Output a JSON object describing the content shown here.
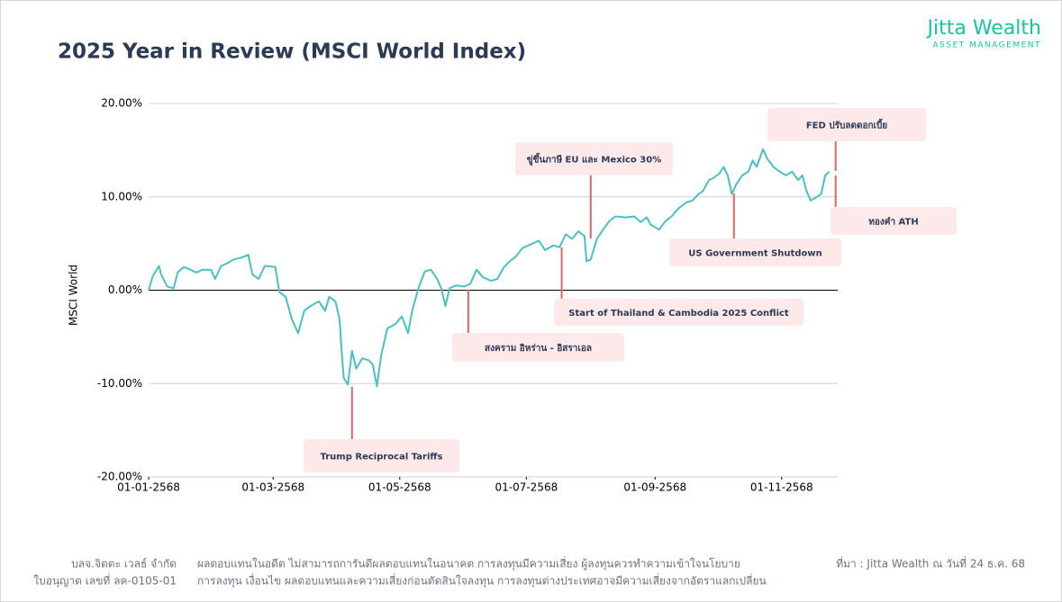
{
  "header": {
    "title": "2025 Year in Review (MSCI World Index)",
    "logo_main": "Jitta Wealth",
    "logo_sub": "ASSET MANAGEMENT"
  },
  "chart_data": {
    "type": "line",
    "ylabel": "MSCI World",
    "color": "#4bbfc3",
    "x": [
      "2568-01-01",
      "2568-01-03",
      "2568-01-06",
      "2568-01-07",
      "2568-01-10",
      "2568-01-13",
      "2568-01-15",
      "2568-01-18",
      "2568-01-21",
      "2568-01-24",
      "2568-01-27",
      "2568-01-31",
      "2568-02-02",
      "2568-02-05",
      "2568-02-08",
      "2568-02-11",
      "2568-02-15",
      "2568-02-18",
      "2568-02-20",
      "2568-02-23",
      "2568-02-26",
      "2568-03-02",
      "2568-03-04",
      "2568-03-07",
      "2568-03-10",
      "2568-03-13",
      "2568-03-16",
      "2568-03-19",
      "2568-03-23",
      "2568-03-26",
      "2568-03-28",
      "2568-03-31",
      "2568-04-02",
      "2568-04-03",
      "2568-04-04",
      "2568-04-06",
      "2568-04-08",
      "2568-04-10",
      "2568-04-13",
      "2568-04-16",
      "2568-04-18",
      "2568-04-20",
      "2568-04-22",
      "2568-04-25",
      "2568-04-29",
      "2568-05-02",
      "2568-05-05",
      "2568-05-07",
      "2568-05-10",
      "2568-05-13",
      "2568-05-16",
      "2568-05-19",
      "2568-05-21",
      "2568-05-23",
      "2568-05-25",
      "2568-05-28",
      "2568-06-01",
      "2568-06-04",
      "2568-06-07",
      "2568-06-10",
      "2568-06-14",
      "2568-06-17",
      "2568-06-20",
      "2568-06-23",
      "2568-06-26",
      "2568-06-29",
      "2568-07-04",
      "2568-07-07",
      "2568-07-10",
      "2568-07-14",
      "2568-07-17",
      "2568-07-20",
      "2568-07-23",
      "2568-07-26",
      "2568-07-29",
      "2568-07-30",
      "2568-08-01",
      "2568-08-04",
      "2568-08-07",
      "2568-08-10",
      "2568-08-13",
      "2568-08-18",
      "2568-08-22",
      "2568-08-25",
      "2568-08-28",
      "2568-08-30",
      "2568-09-03",
      "2568-09-06",
      "2568-09-09",
      "2568-09-12",
      "2568-09-16",
      "2568-09-19",
      "2568-09-22",
      "2568-09-24",
      "2568-09-27",
      "2568-09-29",
      "2568-10-02",
      "2568-10-04",
      "2568-10-06",
      "2568-10-08",
      "2568-10-10",
      "2568-10-13",
      "2568-10-16",
      "2568-10-18",
      "2568-10-20",
      "2568-10-23",
      "2568-10-25",
      "2568-10-28",
      "2568-10-31",
      "2568-11-03",
      "2568-11-06",
      "2568-11-09",
      "2568-11-11",
      "2568-11-13",
      "2568-11-15",
      "2568-11-18",
      "2568-11-20",
      "2568-11-22",
      "2568-11-24"
    ],
    "values": [
      0.0,
      1.5,
      2.6,
      1.7,
      0.4,
      0.2,
      1.9,
      2.5,
      2.2,
      1.9,
      2.2,
      2.2,
      1.2,
      2.6,
      2.9,
      3.3,
      3.5,
      3.8,
      1.7,
      1.2,
      2.6,
      2.5,
      -0.2,
      -0.7,
      -3.1,
      -4.6,
      -2.2,
      -1.7,
      -1.2,
      -2.2,
      -0.7,
      -1.2,
      -3.1,
      -6.5,
      -9.4,
      -10.1,
      -6.5,
      -8.4,
      -7.3,
      -7.5,
      -8.0,
      -10.3,
      -7.0,
      -4.1,
      -3.6,
      -2.8,
      -4.6,
      -2.2,
      0.2,
      2.0,
      2.2,
      1.2,
      0.2,
      -1.7,
      0.2,
      0.5,
      0.4,
      0.7,
      2.2,
      1.4,
      1.0,
      1.2,
      2.4,
      3.1,
      3.6,
      4.5,
      5.0,
      5.3,
      4.3,
      4.8,
      4.6,
      6.0,
      5.5,
      6.3,
      5.8,
      3.1,
      3.3,
      5.5,
      6.5,
      7.4,
      7.9,
      7.8,
      7.9,
      7.3,
      7.8,
      7.0,
      6.5,
      7.4,
      7.9,
      8.7,
      9.4,
      9.6,
      10.3,
      10.6,
      11.8,
      12.0,
      12.5,
      13.2,
      12.3,
      10.3,
      11.3,
      12.3,
      12.7,
      13.9,
      13.2,
      15.1,
      14.1,
      13.2,
      12.7,
      12.3,
      12.7,
      11.8,
      12.3,
      10.6,
      9.6,
      10.0,
      10.3,
      12.3,
      12.7
    ],
    "xlim": [
      "2568-01-01",
      "2568-11-28"
    ],
    "xticks": [
      {
        "value": "2568-01-01",
        "label": "01-01-2568"
      },
      {
        "value": "2568-03-01",
        "label": "01-03-2568"
      },
      {
        "value": "2568-05-01",
        "label": "01-05-2568"
      },
      {
        "value": "2568-07-01",
        "label": "01-07-2568"
      },
      {
        "value": "2568-09-01",
        "label": "01-09-2568"
      },
      {
        "value": "2568-11-01",
        "label": "01-11-2568"
      }
    ],
    "ylim": [
      -20,
      20
    ],
    "yticks": [
      {
        "value": 20,
        "label": "20.00%"
      },
      {
        "value": 10,
        "label": "10.00%"
      },
      {
        "value": 0,
        "label": "0.00%"
      },
      {
        "value": -10,
        "label": "-10.00%"
      },
      {
        "value": -20,
        "label": "-20.00%"
      }
    ],
    "grid": true,
    "annotations": [
      {
        "text": "Trump Reciprocal Tariffs",
        "x": "2568-04-08"
      },
      {
        "text": "สงคราม อิหร่าน - อิสราเอล",
        "x": "2568-06-03"
      },
      {
        "text": "Start of Thailand & Cambodia 2025 Conflict",
        "x": "2568-07-18"
      },
      {
        "text": "ขู่ขึ้นภาษี EU และ Mexico 30%",
        "x": "2568-08-01"
      },
      {
        "text": "US Government Shutdown",
        "x": "2568-10-09"
      },
      {
        "text": "FED ปรับลดดอกเบี้ย",
        "x": "2568-11-27"
      },
      {
        "text": "ทองคำ ATH",
        "x": "2568-11-27"
      }
    ]
  },
  "footer": {
    "company": [
      "บลจ.จิตตะ เวลธ์ จำกัด",
      "ใบอนุญาต เลขที่ ลค-0105-01"
    ],
    "disclaimer": [
      "ผลตอบแทนในอดีต ไม่สามารถการันตีผลตอบแทนในอนาคต การลงทุนมีความเสี่ยง ผู้ลงทุนควรทำความเข้าใจนโยบาย",
      "การลงทุน เงื่อนไข ผลตอบแทนและความเสี่ยงก่อนตัดสินใจลงทุน การลงทุนต่างประเทศอาจมีความเสี่ยงจากอัตราแลกเปลี่ยน"
    ],
    "source": "ที่มา : Jitta Wealth ณ วันที่ 24 ธ.ค. 68"
  }
}
